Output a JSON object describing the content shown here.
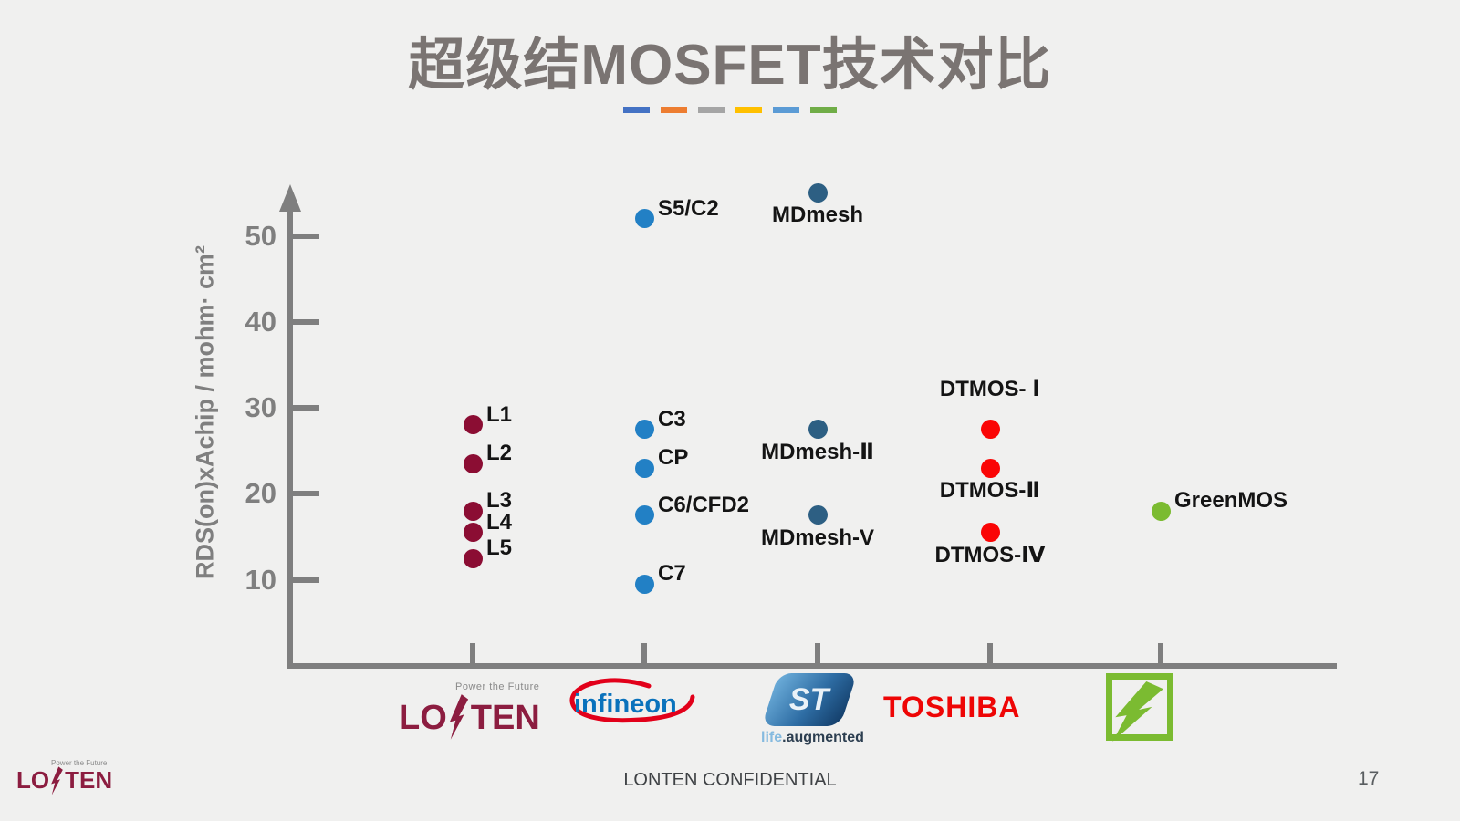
{
  "slide": {
    "title": "超级结MOSFET技术对比",
    "title_color": "#7A7472",
    "accent_dash_colors": [
      "#4472C4",
      "#ED7D31",
      "#A5A5A5",
      "#FFC000",
      "#5B9BD5",
      "#70AD47"
    ],
    "footer_text": "LONTEN CONFIDENTIAL",
    "page_number": "17"
  },
  "chart_data": {
    "type": "scatter",
    "title": "超级结MOSFET技术对比",
    "xlabel": "",
    "ylabel": "RDS(on)xAchip / mohm· cm²",
    "ylim": [
      0,
      58
    ],
    "yticks": [
      10,
      20,
      30,
      40,
      50
    ],
    "grid": false,
    "legend_position": "none",
    "x_categories": [
      "LONTEN",
      "Infineon",
      "ST",
      "TOSHIBA",
      "GreenMOS"
    ],
    "series": [
      {
        "name": "LONTEN",
        "color": "#8B0D33",
        "points": [
          {
            "label": "L1",
            "y": 28,
            "label_side": "right"
          },
          {
            "label": "L2",
            "y": 23.5,
            "label_side": "right"
          },
          {
            "label": "L3",
            "y": 18,
            "label_side": "right"
          },
          {
            "label": "L4",
            "y": 15.5,
            "label_side": "right"
          },
          {
            "label": "L5",
            "y": 12.5,
            "label_side": "right"
          }
        ]
      },
      {
        "name": "Infineon",
        "color": "#2280C5",
        "points": [
          {
            "label": "S5/C2",
            "y": 52,
            "label_side": "right"
          },
          {
            "label": "C3",
            "y": 27.5,
            "label_side": "right"
          },
          {
            "label": "CP",
            "y": 23,
            "label_side": "right"
          },
          {
            "label": "C6/CFD2",
            "y": 17.5,
            "label_side": "right"
          },
          {
            "label": "C7",
            "y": 9.5,
            "label_side": "right"
          }
        ]
      },
      {
        "name": "ST",
        "color": "#2D5F83",
        "points": [
          {
            "label": "MDmesh",
            "y": 55,
            "label_side": "below"
          },
          {
            "label": "MDmesh-Ⅱ",
            "y": 27.5,
            "label_side": "below"
          },
          {
            "label": "MDmesh-V",
            "y": 17.5,
            "label_side": "below"
          }
        ]
      },
      {
        "name": "TOSHIBA",
        "color": "#FA0505",
        "points": [
          {
            "label": "DTMOS- Ⅰ",
            "y": 27.5,
            "label_side": "above"
          },
          {
            "label": "DTMOS-Ⅱ",
            "y": 23,
            "label_side": "below"
          },
          {
            "label": "DTMOS-Ⅳ",
            "y": 15.5,
            "label_side": "below"
          }
        ]
      },
      {
        "name": "GreenMOS",
        "color": "#7BBB31",
        "points": [
          {
            "label": "GreenMOS",
            "y": 18,
            "label_side": "right"
          }
        ]
      }
    ]
  },
  "vendor_logos": {
    "lonten": {
      "word_left": "LO",
      "word_right": "TEN",
      "tagline": "Power the Future"
    },
    "infineon": {
      "name": "infineon"
    },
    "st": {
      "mark": "ST",
      "tagline_life": "life",
      "tagline_aug": ".augmented"
    },
    "toshiba": {
      "name": "TOSHIBA"
    },
    "green": {
      "name": "green-lightning-logo"
    }
  },
  "corner_logo": {
    "word_left": "LO",
    "word_right": "TEN",
    "tagline": "Power the Future"
  }
}
